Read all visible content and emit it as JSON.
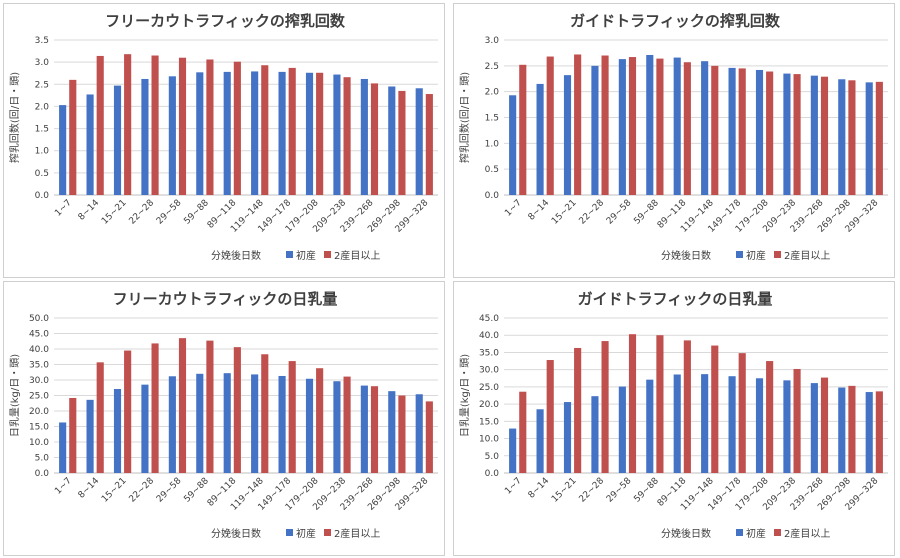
{
  "chart_data": [
    {
      "type": "bar",
      "title": "フリーカウトラフィックの搾乳回数",
      "xlabel": "分娩後日数",
      "ylabel": "搾乳回数(回/日・頭)",
      "ylim": [
        0,
        3.5
      ],
      "yticks": [
        "0.0",
        "0.5",
        "1.0",
        "1.5",
        "2.0",
        "2.5",
        "3.0",
        "3.5"
      ],
      "grid": true,
      "legend": "bottom-right",
      "categories": [
        "1~7",
        "8~14",
        "15~21",
        "22~28",
        "29~58",
        "59~88",
        "89~118",
        "119~148",
        "149~178",
        "179~208",
        "209~238",
        "239~268",
        "269~298",
        "299~328"
      ],
      "series": [
        {
          "name": "初産",
          "color": "#4472C4",
          "values": [
            2.03,
            2.27,
            2.47,
            2.62,
            2.68,
            2.77,
            2.78,
            2.79,
            2.78,
            2.76,
            2.72,
            2.62,
            2.45,
            2.41
          ]
        },
        {
          "name": "2産目以上",
          "color": "#C0504D",
          "values": [
            2.6,
            3.14,
            3.18,
            3.15,
            3.1,
            3.06,
            3.01,
            2.93,
            2.87,
            2.76,
            2.66,
            2.52,
            2.35,
            2.28
          ]
        }
      ]
    },
    {
      "type": "bar",
      "title": "ガイドトラフィックの搾乳回数",
      "xlabel": "分娩後日数",
      "ylabel": "搾乳回数(回/日・頭)",
      "ylim": [
        0,
        3.0
      ],
      "yticks": [
        "0.0",
        "0.5",
        "1.0",
        "1.5",
        "2.0",
        "2.5",
        "3.0"
      ],
      "grid": true,
      "legend": "bottom-right",
      "categories": [
        "1~7",
        "8~14",
        "15~21",
        "22~28",
        "29~58",
        "59~88",
        "89~118",
        "119~148",
        "149~178",
        "179~208",
        "209~238",
        "239~268",
        "269~298",
        "299~328"
      ],
      "series": [
        {
          "name": "初産",
          "color": "#4472C4",
          "values": [
            1.93,
            2.15,
            2.32,
            2.5,
            2.63,
            2.71,
            2.66,
            2.59,
            2.46,
            2.42,
            2.35,
            2.31,
            2.24,
            2.18
          ]
        },
        {
          "name": "2産目以上",
          "color": "#C0504D",
          "values": [
            2.52,
            2.68,
            2.72,
            2.7,
            2.67,
            2.64,
            2.57,
            2.5,
            2.45,
            2.39,
            2.34,
            2.29,
            2.22,
            2.19
          ]
        }
      ]
    },
    {
      "type": "bar",
      "title": "フリーカウトラフィックの日乳量",
      "xlabel": "分娩後日数",
      "ylabel": "日乳量(kg/日・頭)",
      "ylim": [
        0,
        50
      ],
      "yticks": [
        "0.0",
        "5.0",
        "10.0",
        "15.0",
        "20.0",
        "25.0",
        "30.0",
        "35.0",
        "40.0",
        "45.0",
        "50.0"
      ],
      "grid": true,
      "legend": "bottom-right",
      "categories": [
        "1~7",
        "8~14",
        "15~21",
        "22~28",
        "29~58",
        "59~88",
        "89~118",
        "119~148",
        "149~178",
        "179~208",
        "209~238",
        "239~268",
        "269~298",
        "299~328"
      ],
      "series": [
        {
          "name": "初産",
          "color": "#4472C4",
          "values": [
            16.3,
            23.6,
            27.1,
            28.5,
            31.2,
            32.0,
            32.2,
            31.8,
            31.3,
            30.4,
            29.6,
            28.2,
            26.4,
            25.4
          ]
        },
        {
          "name": "2産目以上",
          "color": "#C0504D",
          "values": [
            24.2,
            35.7,
            39.5,
            41.8,
            43.5,
            42.7,
            40.6,
            38.3,
            36.1,
            33.8,
            31.1,
            28.0,
            25.0,
            23.1
          ]
        }
      ]
    },
    {
      "type": "bar",
      "title": "ガイドトラフィックの日乳量",
      "xlabel": "分娩後日数",
      "ylabel": "日乳量(kg/日・頭)",
      "ylim": [
        0,
        45
      ],
      "yticks": [
        "0.0",
        "5.0",
        "10.0",
        "15.0",
        "20.0",
        "25.0",
        "30.0",
        "35.0",
        "40.0",
        "45.0"
      ],
      "grid": true,
      "legend": "bottom-right",
      "categories": [
        "1~7",
        "8~14",
        "15~21",
        "22~28",
        "29~58",
        "59~88",
        "89~118",
        "119~148",
        "149~178",
        "179~208",
        "209~238",
        "239~268",
        "269~298",
        "299~328"
      ],
      "series": [
        {
          "name": "初産",
          "color": "#4472C4",
          "values": [
            12.9,
            18.5,
            20.6,
            22.3,
            25.1,
            27.1,
            28.6,
            28.7,
            28.1,
            27.5,
            26.9,
            26.1,
            24.8,
            23.5
          ]
        },
        {
          "name": "2産目以上",
          "color": "#C0504D",
          "values": [
            23.6,
            32.8,
            36.3,
            38.3,
            40.3,
            40.0,
            38.5,
            37.0,
            34.8,
            32.5,
            30.2,
            27.7,
            25.3,
            23.7
          ]
        }
      ]
    }
  ]
}
